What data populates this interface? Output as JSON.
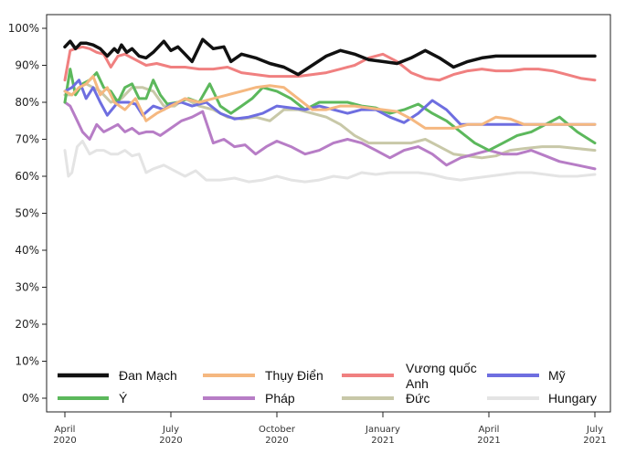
{
  "chart_data": {
    "type": "line",
    "title": "",
    "xlabel": "",
    "ylabel": "",
    "ylim": [
      0,
      100
    ],
    "yticks": [
      0,
      10,
      20,
      30,
      40,
      50,
      60,
      70,
      80,
      90,
      100
    ],
    "ytick_labels": [
      "0%",
      "10%",
      "20%",
      "30%",
      "40%",
      "50%",
      "60%",
      "70%",
      "80%",
      "90%",
      "100%"
    ],
    "x_range_months": [
      0,
      15
    ],
    "xticks": [
      {
        "month": 0,
        "line1": "April",
        "line2": "2020"
      },
      {
        "month": 3,
        "line1": "July",
        "line2": "2020"
      },
      {
        "month": 6,
        "line1": "October",
        "line2": "2020"
      },
      {
        "month": 9,
        "line1": "January",
        "line2": "2021"
      },
      {
        "month": 12,
        "line1": "April",
        "line2": "2021"
      },
      {
        "month": 15,
        "line1": "July",
        "line2": "2021"
      }
    ],
    "legend_placement": "bottom-inside",
    "series": [
      {
        "name": "Đan Mạch",
        "color": "#111111",
        "x": [
          0,
          0.15,
          0.3,
          0.45,
          0.6,
          0.8,
          1.0,
          1.2,
          1.4,
          1.5,
          1.6,
          1.75,
          1.9,
          2.1,
          2.3,
          2.5,
          2.8,
          3.0,
          3.2,
          3.4,
          3.6,
          3.9,
          4.2,
          4.5,
          4.7,
          5.0,
          5.4,
          5.8,
          6.2,
          6.6,
          7.0,
          7.4,
          7.8,
          8.2,
          8.6,
          9.0,
          9.4,
          9.8,
          10.2,
          10.6,
          11.0,
          11.4,
          11.8,
          12.2,
          12.6,
          13.0,
          13.5,
          14.0,
          14.5,
          15.0
        ],
        "y": [
          95,
          96.5,
          94.5,
          96,
          96,
          95.5,
          94.5,
          92.5,
          94.5,
          93.5,
          95.5,
          93.5,
          94.5,
          92.5,
          92,
          93.5,
          96.5,
          94,
          95,
          93,
          91,
          97,
          94.5,
          95,
          91,
          93,
          92,
          90.5,
          89.5,
          87.5,
          90,
          92.5,
          94,
          93,
          91.5,
          91,
          90.5,
          92,
          94,
          92,
          89.5,
          91,
          92,
          92.5,
          92.5,
          92.5,
          92.5,
          92.5,
          92.5,
          92.5
        ]
      },
      {
        "name": "Thụy Điển",
        "color": "#f5b880",
        "x": [
          0,
          0.2,
          0.4,
          0.6,
          0.8,
          1.0,
          1.2,
          1.4,
          1.7,
          2.0,
          2.3,
          2.6,
          3.0,
          3.4,
          3.8,
          4.2,
          4.6,
          5.0,
          5.4,
          5.8,
          6.2,
          6.6,
          7.0,
          7.4,
          7.8,
          8.2,
          8.6,
          9.0,
          9.4,
          9.8,
          10.2,
          10.6,
          11.0,
          11.4,
          11.8,
          12.2,
          12.6,
          13.0,
          13.4,
          13.8,
          14.2,
          14.6,
          15.0
        ],
        "y": [
          83,
          82,
          84,
          85,
          87,
          82,
          84,
          80,
          78,
          81,
          75,
          77,
          79,
          81,
          80,
          81,
          82,
          83,
          84,
          84.5,
          84,
          81,
          78,
          78,
          79,
          79,
          78.5,
          78,
          77.5,
          75.5,
          73,
          73,
          73,
          74,
          74,
          76,
          75.5,
          74,
          74,
          74,
          74,
          74,
          74
        ]
      },
      {
        "name": "Vương quốc Anh",
        "color": "#f08080",
        "x": [
          0,
          0.15,
          0.3,
          0.5,
          0.7,
          0.9,
          1.1,
          1.3,
          1.5,
          1.7,
          2.0,
          2.3,
          2.6,
          3.0,
          3.4,
          3.8,
          4.2,
          4.6,
          5.0,
          5.4,
          5.8,
          6.2,
          6.6,
          7.0,
          7.4,
          7.8,
          8.2,
          8.6,
          9.0,
          9.4,
          9.8,
          10.2,
          10.6,
          11.0,
          11.4,
          11.8,
          12.2,
          12.6,
          13.0,
          13.4,
          13.8,
          14.2,
          14.6,
          15.0
        ],
        "y": [
          86,
          94,
          94.5,
          95,
          94.5,
          93.5,
          93,
          89.5,
          92.5,
          93,
          91.5,
          90,
          90.5,
          89.5,
          89.5,
          89,
          89,
          89.5,
          88,
          87.5,
          87,
          87,
          87,
          87.5,
          88,
          89,
          90,
          92,
          93,
          91,
          88,
          86.5,
          86,
          87.5,
          88.5,
          89,
          88.5,
          88.5,
          89,
          89,
          88.5,
          87.5,
          86.5,
          86
        ]
      },
      {
        "name": "Mỹ",
        "color": "#6e6ee0",
        "x": [
          0,
          0.2,
          0.4,
          0.6,
          0.8,
          1.0,
          1.2,
          1.5,
          1.8,
          2.0,
          2.2,
          2.5,
          2.8,
          3.0,
          3.3,
          3.6,
          4.0,
          4.4,
          4.8,
          5.2,
          5.6,
          6.0,
          6.4,
          6.8,
          7.2,
          7.6,
          8.0,
          8.4,
          8.8,
          9.2,
          9.6,
          10.0,
          10.4,
          10.8,
          11.2,
          11.6,
          12.0,
          12.4,
          12.8,
          13.2,
          13.6,
          14.0,
          14.5,
          15.0
        ],
        "y": [
          83,
          84,
          86,
          81,
          84,
          80,
          76.5,
          80,
          80,
          79.5,
          76.5,
          79,
          78,
          79.5,
          80,
          79,
          80,
          77,
          75.5,
          76,
          77,
          79,
          78.5,
          78,
          79,
          78,
          77,
          78,
          78,
          76,
          74.5,
          77,
          80.5,
          78,
          74,
          74,
          74,
          74,
          74,
          74,
          74,
          74,
          74,
          74
        ]
      },
      {
        "name": "Ý",
        "color": "#5cb85c",
        "x": [
          0,
          0.15,
          0.3,
          0.5,
          0.7,
          0.9,
          1.1,
          1.3,
          1.5,
          1.7,
          1.9,
          2.1,
          2.3,
          2.5,
          2.7,
          2.9,
          3.2,
          3.5,
          3.8,
          4.1,
          4.4,
          4.7,
          5.0,
          5.3,
          5.6,
          6.0,
          6.4,
          6.8,
          7.2,
          7.6,
          8.0,
          8.4,
          8.8,
          9.2,
          9.6,
          10.0,
          10.4,
          10.8,
          11.2,
          11.6,
          12.0,
          12.4,
          12.8,
          13.2,
          13.6,
          14.0,
          14.5,
          15.0
        ],
        "y": [
          80,
          89,
          82,
          85,
          86,
          88,
          84,
          83,
          80,
          84,
          85,
          81,
          81,
          86,
          82,
          79.5,
          80,
          81,
          80,
          85,
          79,
          77,
          79,
          81,
          84,
          83,
          81,
          78,
          80,
          80,
          80,
          79,
          78.5,
          77,
          78,
          79.5,
          77,
          75,
          72,
          69,
          67,
          69,
          71,
          72,
          74,
          76,
          72,
          69
        ]
      },
      {
        "name": "Pháp",
        "color": "#b77dc6",
        "x": [
          0,
          0.15,
          0.3,
          0.5,
          0.7,
          0.9,
          1.1,
          1.3,
          1.5,
          1.7,
          1.9,
          2.1,
          2.3,
          2.5,
          2.7,
          3.0,
          3.3,
          3.6,
          3.9,
          4.2,
          4.5,
          4.8,
          5.1,
          5.4,
          5.7,
          6.0,
          6.4,
          6.8,
          7.2,
          7.6,
          8.0,
          8.4,
          8.8,
          9.2,
          9.6,
          10.0,
          10.4,
          10.8,
          11.2,
          11.6,
          12.0,
          12.4,
          12.8,
          13.2,
          13.6,
          14.0,
          14.5,
          15.0
        ],
        "y": [
          80,
          79,
          76,
          72,
          70,
          74,
          72,
          73,
          74,
          72,
          73,
          71.5,
          72,
          72,
          71,
          73,
          75,
          76,
          77.5,
          69,
          70,
          68,
          68.5,
          66,
          68,
          69.5,
          68,
          66,
          67,
          69,
          70,
          69,
          67,
          65,
          67,
          68,
          66,
          63,
          65,
          66,
          67,
          66,
          66,
          67,
          65.5,
          64,
          63,
          62
        ]
      },
      {
        "name": "Đức",
        "color": "#c8c8a8",
        "x": [
          0,
          0.2,
          0.4,
          0.6,
          0.8,
          1.0,
          1.3,
          1.6,
          1.9,
          2.2,
          2.5,
          2.8,
          3.1,
          3.4,
          3.8,
          4.2,
          4.6,
          5.0,
          5.4,
          5.8,
          6.2,
          6.6,
          7.0,
          7.4,
          7.8,
          8.2,
          8.6,
          9.0,
          9.4,
          9.8,
          10.2,
          10.6,
          11.0,
          11.4,
          11.8,
          12.2,
          12.6,
          13.0,
          13.5,
          14.0,
          14.5,
          15.0
        ],
        "y": [
          82,
          82,
          84,
          85,
          84,
          83,
          80,
          81,
          84,
          84,
          83,
          79,
          79,
          81,
          79,
          78,
          76,
          75.5,
          76,
          75,
          78,
          78,
          77,
          76,
          74,
          71,
          69,
          69,
          69,
          69,
          70,
          68,
          66,
          65.5,
          65,
          65.5,
          67,
          67.5,
          68,
          68,
          67.5,
          67
        ]
      },
      {
        "name": "Hungary",
        "color": "#e4e4e4",
        "x": [
          0,
          0.1,
          0.2,
          0.35,
          0.5,
          0.7,
          0.9,
          1.1,
          1.3,
          1.5,
          1.7,
          1.9,
          2.1,
          2.3,
          2.5,
          2.8,
          3.1,
          3.4,
          3.7,
          4.0,
          4.4,
          4.8,
          5.2,
          5.6,
          6.0,
          6.4,
          6.8,
          7.2,
          7.6,
          8.0,
          8.4,
          8.8,
          9.2,
          9.6,
          10.0,
          10.4,
          10.8,
          11.2,
          11.6,
          12.0,
          12.4,
          12.8,
          13.2,
          13.6,
          14.0,
          14.5,
          15.0
        ],
        "y": [
          67,
          60,
          61,
          68,
          69.5,
          66,
          67,
          67,
          66,
          66,
          67,
          65.5,
          66,
          61,
          62,
          63,
          61.5,
          60,
          61.5,
          59,
          59,
          59.5,
          58.5,
          59,
          60,
          59,
          58.5,
          59,
          60,
          59.5,
          61,
          60.5,
          61,
          61,
          61,
          60.5,
          59.5,
          59,
          59.5,
          60,
          60.5,
          61,
          61,
          60.5,
          60,
          60,
          60.5
        ]
      }
    ],
    "legend_rows": [
      [
        "Đan Mạch",
        "Thụy Điển",
        "Vương quốc Anh",
        "Mỹ"
      ],
      [
        "Ý",
        "Pháp",
        "Đức",
        "Hungary"
      ]
    ],
    "legend_wrapped": {
      "Vương quốc Anh": [
        "Vương quốc",
        "Anh"
      ]
    }
  }
}
